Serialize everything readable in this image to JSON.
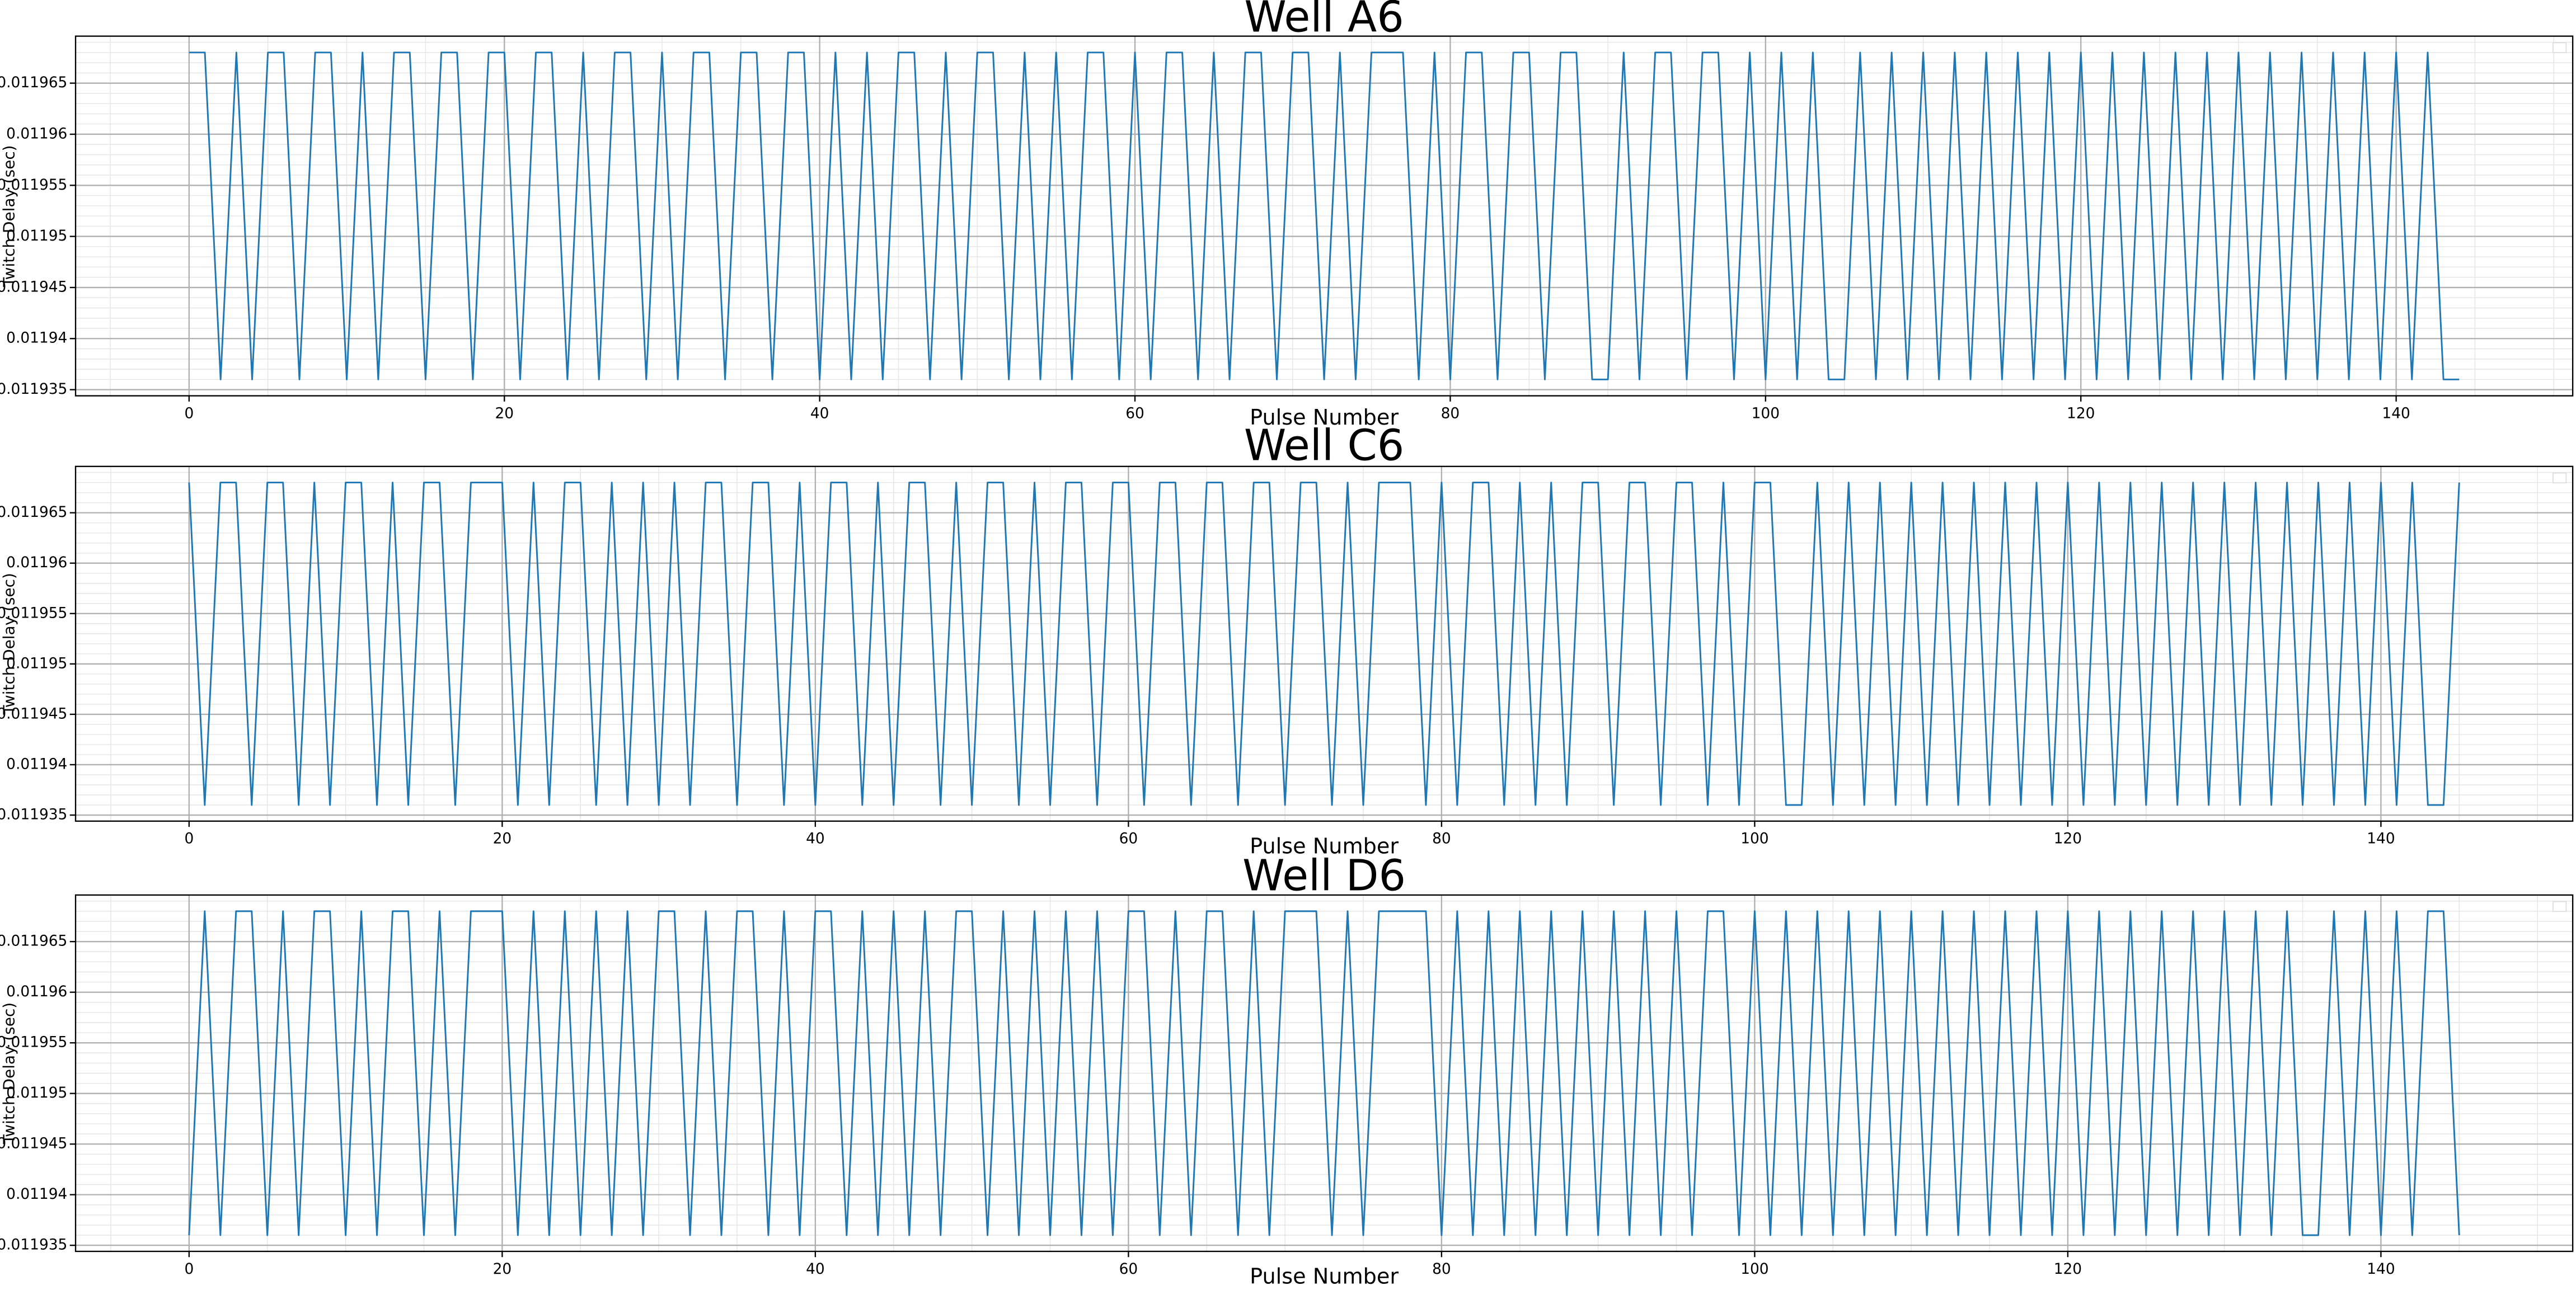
{
  "chart_data": [
    {
      "type": "line",
      "title": "Well A6",
      "xlabel": "Pulse Number",
      "ylabel": "Twitch Delay (sec)",
      "grid": true,
      "xlim": [
        -7.2,
        151.2
      ],
      "xticks": [
        0,
        20,
        40,
        60,
        80,
        100,
        120,
        140
      ],
      "ylim": [
        0.0119344,
        0.0119696
      ],
      "yticks": [
        0.011935,
        0.01194,
        0.011945,
        0.01195,
        0.011955,
        0.01196,
        0.011965
      ],
      "x": [
        0,
        1,
        2,
        3,
        4,
        5,
        6,
        7,
        8,
        9,
        10,
        11,
        12,
        13,
        14,
        15,
        16,
        17,
        18,
        19,
        20,
        21,
        22,
        23,
        24,
        25,
        26,
        27,
        28,
        29,
        30,
        31,
        32,
        33,
        34,
        35,
        36,
        37,
        38,
        39,
        40,
        41,
        42,
        43,
        44,
        45,
        46,
        47,
        48,
        49,
        50,
        51,
        52,
        53,
        54,
        55,
        56,
        57,
        58,
        59,
        60,
        61,
        62,
        63,
        64,
        65,
        66,
        67,
        68,
        69,
        70,
        71,
        72,
        73,
        74,
        75,
        76,
        77,
        78,
        79,
        80,
        81,
        82,
        83,
        84,
        85,
        86,
        87,
        88,
        89,
        90,
        91,
        92,
        93,
        94,
        95,
        96,
        97,
        98,
        99,
        100,
        101,
        102,
        103,
        104,
        105,
        106,
        107,
        108,
        109,
        110,
        111,
        112,
        113,
        114,
        115,
        116,
        117,
        118,
        119,
        120,
        121,
        122,
        123,
        124,
        125,
        126,
        127,
        128,
        129,
        130,
        131,
        132,
        133,
        134,
        135,
        136,
        137,
        138,
        139,
        140,
        141,
        142,
        143,
        144
      ],
      "series": [
        {
          "color": "#1f77b4",
          "values": [
            0.011968,
            0.011968,
            0.011936,
            0.011968,
            0.011936,
            0.011968,
            0.011968,
            0.011936,
            0.011968,
            0.011968,
            0.011936,
            0.011968,
            0.011936,
            0.011968,
            0.011968,
            0.011936,
            0.011968,
            0.011968,
            0.011936,
            0.011968,
            0.011968,
            0.011936,
            0.011968,
            0.011968,
            0.011936,
            0.011968,
            0.011936,
            0.011968,
            0.011968,
            0.011936,
            0.011968,
            0.011936,
            0.011968,
            0.011968,
            0.011936,
            0.011968,
            0.011968,
            0.011936,
            0.011968,
            0.011968,
            0.011936,
            0.011968,
            0.011936,
            0.011968,
            0.011936,
            0.011968,
            0.011968,
            0.011936,
            0.011968,
            0.011936,
            0.011968,
            0.011968,
            0.011936,
            0.011968,
            0.011936,
            0.011968,
            0.011936,
            0.011968,
            0.011968,
            0.011936,
            0.011968,
            0.011936,
            0.011968,
            0.011968,
            0.011936,
            0.011968,
            0.011936,
            0.011968,
            0.011968,
            0.011936,
            0.011968,
            0.011968,
            0.011936,
            0.011968,
            0.011936,
            0.011968,
            0.011968,
            0.011968,
            0.011936,
            0.011968,
            0.011936,
            0.011968,
            0.011968,
            0.011936,
            0.011968,
            0.011968,
            0.011936,
            0.011968,
            0.011968,
            0.011936,
            0.011936,
            0.011968,
            0.011936,
            0.011968,
            0.011968,
            0.011936,
            0.011968,
            0.011968,
            0.011936,
            0.011968,
            0.011936,
            0.011968,
            0.011936,
            0.011968,
            0.011936,
            0.011936,
            0.011968,
            0.011936,
            0.011968,
            0.011936,
            0.011968,
            0.011936,
            0.011968,
            0.011936,
            0.011968,
            0.011936,
            0.011968,
            0.011936,
            0.011968,
            0.011936,
            0.011968,
            0.011936,
            0.011968,
            0.011936,
            0.011968,
            0.011936,
            0.011968,
            0.011936,
            0.011968,
            0.011936,
            0.011968,
            0.011936,
            0.011968,
            0.011936,
            0.011968,
            0.011936,
            0.011968,
            0.011936,
            0.011968,
            0.011936,
            0.011968,
            0.011936,
            0.011968,
            0.011936,
            0.011936
          ]
        }
      ]
    },
    {
      "type": "line",
      "title": "Well C6",
      "xlabel": "Pulse Number",
      "ylabel": "Twitch Delay (sec)",
      "grid": true,
      "xlim": [
        -7.25,
        152.25
      ],
      "xticks": [
        0,
        20,
        40,
        60,
        80,
        100,
        120,
        140
      ],
      "ylim": [
        0.0119344,
        0.0119696
      ],
      "yticks": [
        0.011935,
        0.01194,
        0.011945,
        0.01195,
        0.011955,
        0.01196,
        0.011965
      ],
      "x": [
        0,
        1,
        2,
        3,
        4,
        5,
        6,
        7,
        8,
        9,
        10,
        11,
        12,
        13,
        14,
        15,
        16,
        17,
        18,
        19,
        20,
        21,
        22,
        23,
        24,
        25,
        26,
        27,
        28,
        29,
        30,
        31,
        32,
        33,
        34,
        35,
        36,
        37,
        38,
        39,
        40,
        41,
        42,
        43,
        44,
        45,
        46,
        47,
        48,
        49,
        50,
        51,
        52,
        53,
        54,
        55,
        56,
        57,
        58,
        59,
        60,
        61,
        62,
        63,
        64,
        65,
        66,
        67,
        68,
        69,
        70,
        71,
        72,
        73,
        74,
        75,
        76,
        77,
        78,
        79,
        80,
        81,
        82,
        83,
        84,
        85,
        86,
        87,
        88,
        89,
        90,
        91,
        92,
        93,
        94,
        95,
        96,
        97,
        98,
        99,
        100,
        101,
        102,
        103,
        104,
        105,
        106,
        107,
        108,
        109,
        110,
        111,
        112,
        113,
        114,
        115,
        116,
        117,
        118,
        119,
        120,
        121,
        122,
        123,
        124,
        125,
        126,
        127,
        128,
        129,
        130,
        131,
        132,
        133,
        134,
        135,
        136,
        137,
        138,
        139,
        140,
        141,
        142,
        143,
        144,
        145
      ],
      "series": [
        {
          "color": "#1f77b4",
          "values": [
            0.011968,
            0.011936,
            0.011968,
            0.011968,
            0.011936,
            0.011968,
            0.011968,
            0.011936,
            0.011968,
            0.011936,
            0.011968,
            0.011968,
            0.011936,
            0.011968,
            0.011936,
            0.011968,
            0.011968,
            0.011936,
            0.011968,
            0.011968,
            0.011968,
            0.011936,
            0.011968,
            0.011936,
            0.011968,
            0.011968,
            0.011936,
            0.011968,
            0.011936,
            0.011968,
            0.011936,
            0.011968,
            0.011936,
            0.011968,
            0.011968,
            0.011936,
            0.011968,
            0.011968,
            0.011936,
            0.011968,
            0.011936,
            0.011968,
            0.011968,
            0.011936,
            0.011968,
            0.011936,
            0.011968,
            0.011968,
            0.011936,
            0.011968,
            0.011936,
            0.011968,
            0.011968,
            0.011936,
            0.011968,
            0.011936,
            0.011968,
            0.011968,
            0.011936,
            0.011968,
            0.011968,
            0.011936,
            0.011968,
            0.011968,
            0.011936,
            0.011968,
            0.011968,
            0.011936,
            0.011968,
            0.011968,
            0.011936,
            0.011968,
            0.011968,
            0.011936,
            0.011968,
            0.011936,
            0.011968,
            0.011968,
            0.011968,
            0.011936,
            0.011968,
            0.011936,
            0.011968,
            0.011968,
            0.011936,
            0.011968,
            0.011936,
            0.011968,
            0.011936,
            0.011968,
            0.011968,
            0.011936,
            0.011968,
            0.011968,
            0.011936,
            0.011968,
            0.011968,
            0.011936,
            0.011968,
            0.011936,
            0.011968,
            0.011968,
            0.011936,
            0.011936,
            0.011968,
            0.011936,
            0.011968,
            0.011936,
            0.011968,
            0.011936,
            0.011968,
            0.011936,
            0.011968,
            0.011936,
            0.011968,
            0.011936,
            0.011968,
            0.011936,
            0.011968,
            0.011936,
            0.011968,
            0.011936,
            0.011968,
            0.011936,
            0.011968,
            0.011936,
            0.011968,
            0.011936,
            0.011968,
            0.011936,
            0.011968,
            0.011936,
            0.011968,
            0.011936,
            0.011968,
            0.011936,
            0.011968,
            0.011936,
            0.011968,
            0.011936,
            0.011968,
            0.011936,
            0.011968,
            0.011936,
            0.011936,
            0.011968
          ]
        }
      ]
    },
    {
      "type": "line",
      "title": "Well D6",
      "xlabel": "Pulse Number",
      "ylabel": "Twitch Delay (sec)",
      "grid": true,
      "xlim": [
        -7.25,
        152.25
      ],
      "xticks": [
        0,
        20,
        40,
        60,
        80,
        100,
        120,
        140
      ],
      "ylim": [
        0.0119344,
        0.0119696
      ],
      "yticks": [
        0.011935,
        0.01194,
        0.011945,
        0.01195,
        0.011955,
        0.01196,
        0.011965
      ],
      "x": [
        0,
        1,
        2,
        3,
        4,
        5,
        6,
        7,
        8,
        9,
        10,
        11,
        12,
        13,
        14,
        15,
        16,
        17,
        18,
        19,
        20,
        21,
        22,
        23,
        24,
        25,
        26,
        27,
        28,
        29,
        30,
        31,
        32,
        33,
        34,
        35,
        36,
        37,
        38,
        39,
        40,
        41,
        42,
        43,
        44,
        45,
        46,
        47,
        48,
        49,
        50,
        51,
        52,
        53,
        54,
        55,
        56,
        57,
        58,
        59,
        60,
        61,
        62,
        63,
        64,
        65,
        66,
        67,
        68,
        69,
        70,
        71,
        72,
        73,
        74,
        75,
        76,
        77,
        78,
        79,
        80,
        81,
        82,
        83,
        84,
        85,
        86,
        87,
        88,
        89,
        90,
        91,
        92,
        93,
        94,
        95,
        96,
        97,
        98,
        99,
        100,
        101,
        102,
        103,
        104,
        105,
        106,
        107,
        108,
        109,
        110,
        111,
        112,
        113,
        114,
        115,
        116,
        117,
        118,
        119,
        120,
        121,
        122,
        123,
        124,
        125,
        126,
        127,
        128,
        129,
        130,
        131,
        132,
        133,
        134,
        135,
        136,
        137,
        138,
        139,
        140,
        141,
        142,
        143,
        144,
        145
      ],
      "series": [
        {
          "color": "#1f77b4",
          "values": [
            0.011936,
            0.011968,
            0.011936,
            0.011968,
            0.011968,
            0.011936,
            0.011968,
            0.011936,
            0.011968,
            0.011968,
            0.011936,
            0.011968,
            0.011936,
            0.011968,
            0.011968,
            0.011936,
            0.011968,
            0.011936,
            0.011968,
            0.011968,
            0.011968,
            0.011936,
            0.011968,
            0.011936,
            0.011968,
            0.011936,
            0.011968,
            0.011936,
            0.011968,
            0.011936,
            0.011968,
            0.011968,
            0.011936,
            0.011968,
            0.011936,
            0.011968,
            0.011968,
            0.011936,
            0.011968,
            0.011936,
            0.011968,
            0.011968,
            0.011936,
            0.011968,
            0.011936,
            0.011968,
            0.011936,
            0.011968,
            0.011936,
            0.011968,
            0.011968,
            0.011936,
            0.011968,
            0.011936,
            0.011968,
            0.011936,
            0.011968,
            0.011936,
            0.011968,
            0.011936,
            0.011968,
            0.011968,
            0.011936,
            0.011968,
            0.011936,
            0.011968,
            0.011968,
            0.011936,
            0.011968,
            0.011936,
            0.011968,
            0.011968,
            0.011968,
            0.011936,
            0.011968,
            0.011936,
            0.011968,
            0.011968,
            0.011968,
            0.011968,
            0.011936,
            0.011968,
            0.011936,
            0.011968,
            0.011936,
            0.011968,
            0.011936,
            0.011968,
            0.011936,
            0.011968,
            0.011936,
            0.011968,
            0.011936,
            0.011968,
            0.011936,
            0.011968,
            0.011936,
            0.011968,
            0.011968,
            0.011936,
            0.011968,
            0.011936,
            0.011968,
            0.011936,
            0.011968,
            0.011936,
            0.011968,
            0.011936,
            0.011968,
            0.011936,
            0.011968,
            0.011936,
            0.011968,
            0.011936,
            0.011968,
            0.011936,
            0.011968,
            0.011936,
            0.011968,
            0.011936,
            0.011968,
            0.011936,
            0.011968,
            0.011936,
            0.011968,
            0.011936,
            0.011968,
            0.011936,
            0.011968,
            0.011936,
            0.011968,
            0.011936,
            0.011968,
            0.011936,
            0.011968,
            0.011936,
            0.011936,
            0.011968,
            0.011936,
            0.011968,
            0.011936,
            0.011968,
            0.011936,
            0.011968,
            0.011968,
            0.011936
          ]
        }
      ]
    }
  ]
}
